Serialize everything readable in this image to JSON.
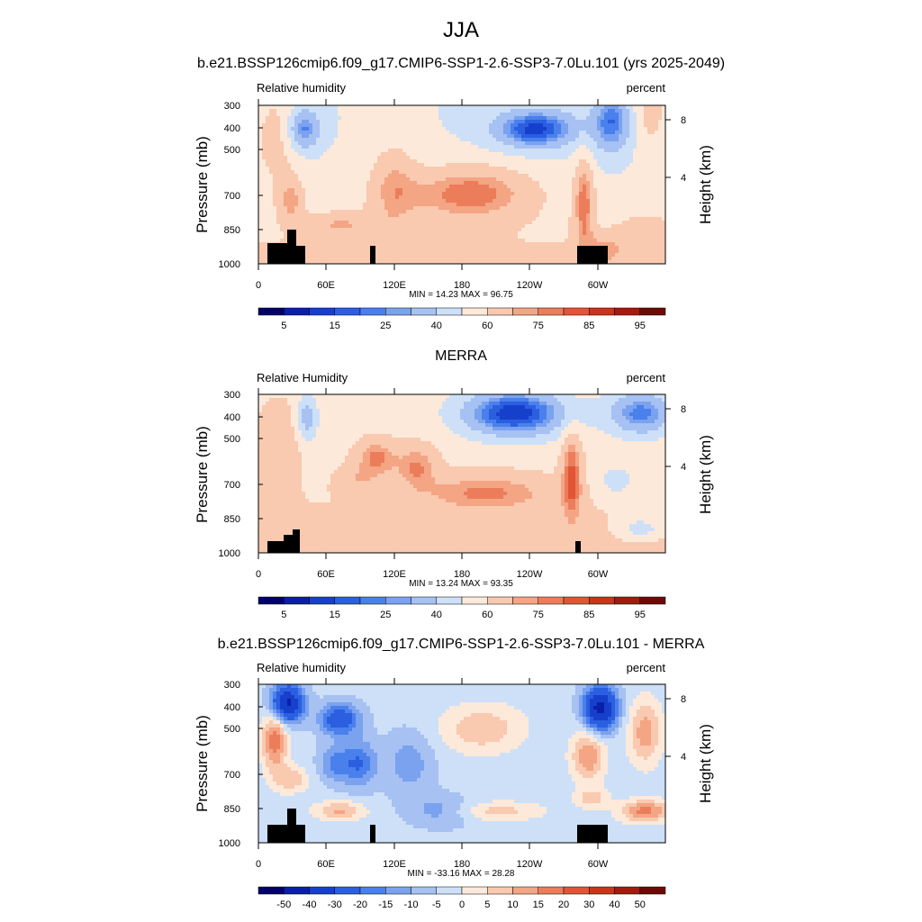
{
  "page": {
    "title": "JJA"
  },
  "colors": {
    "land": "#000000"
  },
  "chart_data": [
    {
      "type": "heatmap",
      "title": "b.e21.BSSP126cmip6.f09_g17.CMIP6-SSP1-2.6-SSP3-7.0Lu.101 (yrs 2025-2049)",
      "left_label": "Relative humidity",
      "right_label": "percent",
      "ylabel": "Pressure (mb)",
      "y2label": "Height (km)",
      "x_ticks": [
        "0",
        "60E",
        "120E",
        "180",
        "120W",
        "60W"
      ],
      "y_ticks": [
        "300",
        "400",
        "500",
        "700",
        "850",
        "1000"
      ],
      "y2_ticks": [
        "8",
        "4"
      ],
      "min_max": "MIN = 14.23  MAX = 96.75",
      "colorbar_labels": [
        "5",
        "15",
        "25",
        "40",
        "60",
        "75",
        "85",
        "95"
      ],
      "palette": [
        "#03006b",
        "#0a1fa8",
        "#1640cc",
        "#2b5fe0",
        "#4a80ec",
        "#7aa2ef",
        "#a6c1f2",
        "#cde0f8",
        "#fde9d9",
        "#f9c9b0",
        "#f3a584",
        "#ec7d5b",
        "#e15535",
        "#c83519",
        "#a21c0e",
        "#6e0a06"
      ],
      "levels": [
        5,
        10,
        15,
        20,
        25,
        30,
        40,
        50,
        60,
        70,
        75,
        80,
        85,
        90,
        95
      ],
      "minimum": 14.23,
      "maximum": 96.75
    },
    {
      "type": "heatmap",
      "title": "MERRA",
      "left_label": "Relative Humidity",
      "right_label": "percent",
      "ylabel": "Pressure (mb)",
      "y2label": "Height (km)",
      "x_ticks": [
        "0",
        "60E",
        "120E",
        "180",
        "120W",
        "60W"
      ],
      "y_ticks": [
        "300",
        "400",
        "500",
        "700",
        "850",
        "1000"
      ],
      "y2_ticks": [
        "8",
        "4"
      ],
      "min_max": "MIN = 13.24  MAX = 93.35",
      "colorbar_labels": [
        "5",
        "15",
        "25",
        "40",
        "60",
        "75",
        "85",
        "95"
      ],
      "palette": [
        "#03006b",
        "#0a1fa8",
        "#1640cc",
        "#2b5fe0",
        "#4a80ec",
        "#7aa2ef",
        "#a6c1f2",
        "#cde0f8",
        "#fde9d9",
        "#f9c9b0",
        "#f3a584",
        "#ec7d5b",
        "#e15535",
        "#c83519",
        "#a21c0e",
        "#6e0a06"
      ],
      "levels": [
        5,
        10,
        15,
        20,
        25,
        30,
        40,
        50,
        60,
        70,
        75,
        80,
        85,
        90,
        95
      ],
      "minimum": 13.24,
      "maximum": 93.35
    },
    {
      "type": "heatmap",
      "title": "b.e21.BSSP126cmip6.f09_g17.CMIP6-SSP1-2.6-SSP3-7.0Lu.101 - MERRA",
      "left_label": "Relative humidity",
      "right_label": "percent",
      "ylabel": "Pressure (mb)",
      "y2label": "Height (km)",
      "x_ticks": [
        "0",
        "60E",
        "120E",
        "180",
        "120W",
        "60W"
      ],
      "y_ticks": [
        "300",
        "400",
        "500",
        "700",
        "850",
        "1000"
      ],
      "y2_ticks": [
        "8",
        "4"
      ],
      "min_max": "MIN = -33.16  MAX = 28.28",
      "colorbar_labels": [
        "-50",
        "-40",
        "-30",
        "-20",
        "-15",
        "-10",
        "-5",
        "0",
        "5",
        "10",
        "15",
        "20",
        "30",
        "40",
        "50"
      ],
      "palette": [
        "#03006b",
        "#0a1fa8",
        "#1640cc",
        "#2b5fe0",
        "#4a80ec",
        "#7aa2ef",
        "#a6c1f2",
        "#cde0f8",
        "#fde9d9",
        "#f9c9b0",
        "#f3a584",
        "#ec7d5b",
        "#e15535",
        "#c83519",
        "#a21c0e",
        "#6e0a06"
      ],
      "levels": [
        -50,
        -40,
        -30,
        -20,
        -15,
        -10,
        -5,
        0,
        5,
        10,
        15,
        20,
        30,
        40,
        50
      ],
      "minimum": -33.16,
      "maximum": 28.28
    }
  ]
}
